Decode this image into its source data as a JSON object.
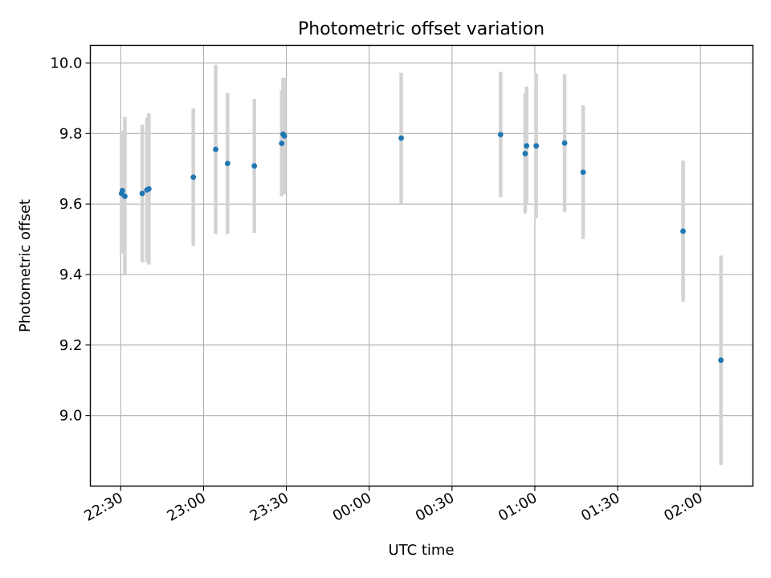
{
  "chart_data": {
    "type": "scatter",
    "title": "Photometric offset variation",
    "xlabel": "UTC time",
    "ylabel": "Photometric offset",
    "grid": true,
    "xlim": [
      "22:19",
      "02:19"
    ],
    "ylim": [
      8.8,
      10.05
    ],
    "x_ticks": [
      "22:30",
      "23:00",
      "23:30",
      "00:00",
      "00:30",
      "01:00",
      "01:30",
      "02:00"
    ],
    "y_ticks": [
      "9.0",
      "9.2",
      "9.4",
      "9.6",
      "9.8",
      "10.0"
    ],
    "colors": {
      "point": "#1f77b4",
      "errorbar": "#d3d3d3",
      "grid": "#b0b0b0"
    },
    "points": [
      {
        "time": "22:30.3",
        "y": 9.63,
        "err": 0.17
      },
      {
        "time": "22:30.6",
        "y": 9.638,
        "err": 0.17
      },
      {
        "time": "22:31.5",
        "y": 9.622,
        "err": 0.225
      },
      {
        "time": "22:37.8",
        "y": 9.63,
        "err": 0.195
      },
      {
        "time": "22:39.5",
        "y": 9.64,
        "err": 0.205
      },
      {
        "time": "22:40.2",
        "y": 9.643,
        "err": 0.215
      },
      {
        "time": "22:56.3",
        "y": 9.676,
        "err": 0.195
      },
      {
        "time": "23:04.4",
        "y": 9.755,
        "err": 0.24
      },
      {
        "time": "23:08.7",
        "y": 9.715,
        "err": 0.2
      },
      {
        "time": "23:18.4",
        "y": 9.708,
        "err": 0.19
      },
      {
        "time": "23:28.3",
        "y": 9.772,
        "err": 0.15
      },
      {
        "time": "23:28.8",
        "y": 9.798,
        "err": 0.16
      },
      {
        "time": "23:29.3",
        "y": 9.793,
        "err": 0.165
      },
      {
        "time": "00:11.6",
        "y": 9.787,
        "err": 0.185
      },
      {
        "time": "00:47.6",
        "y": 9.797,
        "err": 0.178
      },
      {
        "time": "00:56.5",
        "y": 9.743,
        "err": 0.17
      },
      {
        "time": "00:57.0",
        "y": 9.765,
        "err": 0.168
      },
      {
        "time": "01:00.5",
        "y": 9.765,
        "err": 0.205
      },
      {
        "time": "01:10.8",
        "y": 9.773,
        "err": 0.195
      },
      {
        "time": "01:17.5",
        "y": 9.69,
        "err": 0.19
      },
      {
        "time": "01:53.7",
        "y": 9.523,
        "err": 0.2
      },
      {
        "time": "02:07.4",
        "y": 9.157,
        "err": 0.297
      }
    ]
  }
}
